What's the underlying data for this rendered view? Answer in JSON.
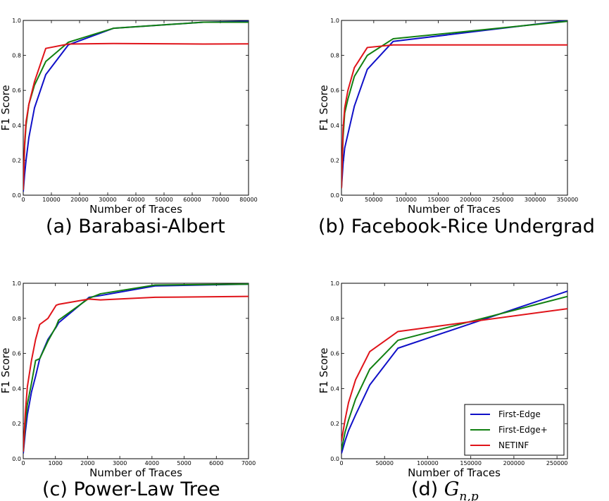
{
  "colors": {
    "first_edge": "#1010c8",
    "first_edge_plus": "#118011",
    "netinf": "#e0141a"
  },
  "legend": [
    "First-Edge",
    "First-Edge+",
    "NETINF"
  ],
  "chart_data": [
    {
      "type": "line",
      "caption": "(a) Barabasi-Albert",
      "caption_math": "",
      "xlabel": "Number of Traces",
      "ylabel": "F1 Score",
      "xlim": [
        0,
        80000
      ],
      "ylim": [
        0,
        1
      ],
      "xticks": [
        0,
        10000,
        20000,
        30000,
        40000,
        50000,
        60000,
        70000,
        80000
      ],
      "yticks": [
        0.0,
        0.2,
        0.4,
        0.6,
        0.8,
        1.0
      ],
      "series": [
        {
          "name": "First-Edge",
          "x": [
            0,
            500,
            1000,
            2000,
            4000,
            8000,
            16000,
            32000,
            64000,
            80000
          ],
          "y": [
            0.02,
            0.12,
            0.2,
            0.33,
            0.5,
            0.69,
            0.86,
            0.955,
            0.99,
            0.995
          ]
        },
        {
          "name": "First-Edge+",
          "x": [
            0,
            500,
            1000,
            2000,
            4000,
            8000,
            16000,
            32000,
            64000,
            80000
          ],
          "y": [
            0.03,
            0.28,
            0.4,
            0.52,
            0.63,
            0.765,
            0.875,
            0.955,
            0.99,
            0.99
          ]
        },
        {
          "name": "NETINF",
          "x": [
            0,
            500,
            1000,
            2000,
            4000,
            8000,
            16000,
            32000,
            64000,
            80000
          ],
          "y": [
            0.03,
            0.3,
            0.42,
            0.52,
            0.65,
            0.84,
            0.865,
            0.868,
            0.865,
            0.866
          ]
        }
      ]
    },
    {
      "type": "line",
      "caption": "(b) Facebook-Rice Undergrad",
      "caption_math": "",
      "xlabel": "Number of Traces",
      "ylabel": "F1 Score",
      "xlim": [
        0,
        350000
      ],
      "ylim": [
        0,
        1
      ],
      "xticks": [
        0,
        50000,
        100000,
        150000,
        200000,
        250000,
        300000,
        350000
      ],
      "yticks": [
        0.0,
        0.2,
        0.4,
        0.6,
        0.8,
        1.0
      ],
      "series": [
        {
          "name": "First-Edge",
          "x": [
            0,
            2500,
            5000,
            10000,
            20000,
            40000,
            80000,
            350000
          ],
          "y": [
            0.04,
            0.18,
            0.27,
            0.35,
            0.51,
            0.72,
            0.88,
            1.0
          ]
        },
        {
          "name": "First-Edge+",
          "x": [
            0,
            2500,
            5000,
            10000,
            20000,
            40000,
            80000,
            350000
          ],
          "y": [
            0.04,
            0.33,
            0.47,
            0.55,
            0.68,
            0.8,
            0.895,
            0.995
          ]
        },
        {
          "name": "NETINF",
          "x": [
            0,
            2500,
            5000,
            10000,
            20000,
            40000,
            80000,
            350000
          ],
          "y": [
            0.04,
            0.38,
            0.5,
            0.6,
            0.73,
            0.845,
            0.86,
            0.86
          ]
        }
      ]
    },
    {
      "type": "line",
      "caption": "(c) Power-Law Tree",
      "caption_math": "",
      "xlabel": "Number of Traces",
      "ylabel": "F1 Score",
      "xlim": [
        0,
        7000
      ],
      "ylim": [
        0,
        1
      ],
      "xticks": [
        0,
        1000,
        2000,
        3000,
        4000,
        5000,
        6000,
        7000
      ],
      "yticks": [
        0.0,
        0.2,
        0.4,
        0.6,
        0.8,
        1.0
      ],
      "series": [
        {
          "name": "First-Edge",
          "x": [
            0,
            64,
            128,
            256,
            384,
            512,
            768,
            1024,
            1100,
            2048,
            2400,
            4096,
            7000
          ],
          "y": [
            0.03,
            0.15,
            0.25,
            0.38,
            0.47,
            0.57,
            0.68,
            0.75,
            0.775,
            0.92,
            0.93,
            0.985,
            0.995
          ]
        },
        {
          "name": "First-Edge+",
          "x": [
            0,
            64,
            128,
            256,
            384,
            512,
            768,
            1024,
            1100,
            2048,
            2400,
            4096,
            7000
          ],
          "y": [
            0.04,
            0.2,
            0.31,
            0.43,
            0.56,
            0.57,
            0.67,
            0.755,
            0.79,
            0.915,
            0.94,
            0.99,
            0.995
          ]
        },
        {
          "name": "NETINF",
          "x": [
            0,
            64,
            128,
            256,
            384,
            512,
            768,
            1024,
            1100,
            2048,
            2400,
            4096,
            7000
          ],
          "y": [
            0.04,
            0.26,
            0.41,
            0.56,
            0.68,
            0.765,
            0.8,
            0.875,
            0.88,
            0.91,
            0.905,
            0.92,
            0.925
          ]
        }
      ]
    },
    {
      "type": "line",
      "caption": "(d) ",
      "caption_math": "G",
      "caption_sub": "n,p",
      "xlabel": "Number of Traces",
      "ylabel": "F1 Score",
      "xlim": [
        0,
        262144
      ],
      "ylim": [
        0,
        1
      ],
      "xticks": [
        0,
        50000,
        100000,
        150000,
        200000,
        250000
      ],
      "yticks": [
        0.0,
        0.2,
        0.4,
        0.6,
        0.8,
        1.0
      ],
      "legend_position": "lower-right",
      "series": [
        {
          "name": "First-Edge",
          "x": [
            0,
            4096,
            8192,
            16384,
            32768,
            65536,
            262144
          ],
          "y": [
            0.03,
            0.1,
            0.16,
            0.25,
            0.42,
            0.63,
            0.955
          ]
        },
        {
          "name": "First-Edge+",
          "x": [
            0,
            4096,
            8192,
            16384,
            32768,
            65536,
            262144
          ],
          "y": [
            0.05,
            0.15,
            0.22,
            0.34,
            0.51,
            0.675,
            0.925
          ]
        },
        {
          "name": "NETINF",
          "x": [
            0,
            4096,
            8192,
            16384,
            32768,
            65536,
            262144
          ],
          "y": [
            0.1,
            0.22,
            0.32,
            0.45,
            0.61,
            0.725,
            0.855
          ]
        }
      ]
    }
  ]
}
